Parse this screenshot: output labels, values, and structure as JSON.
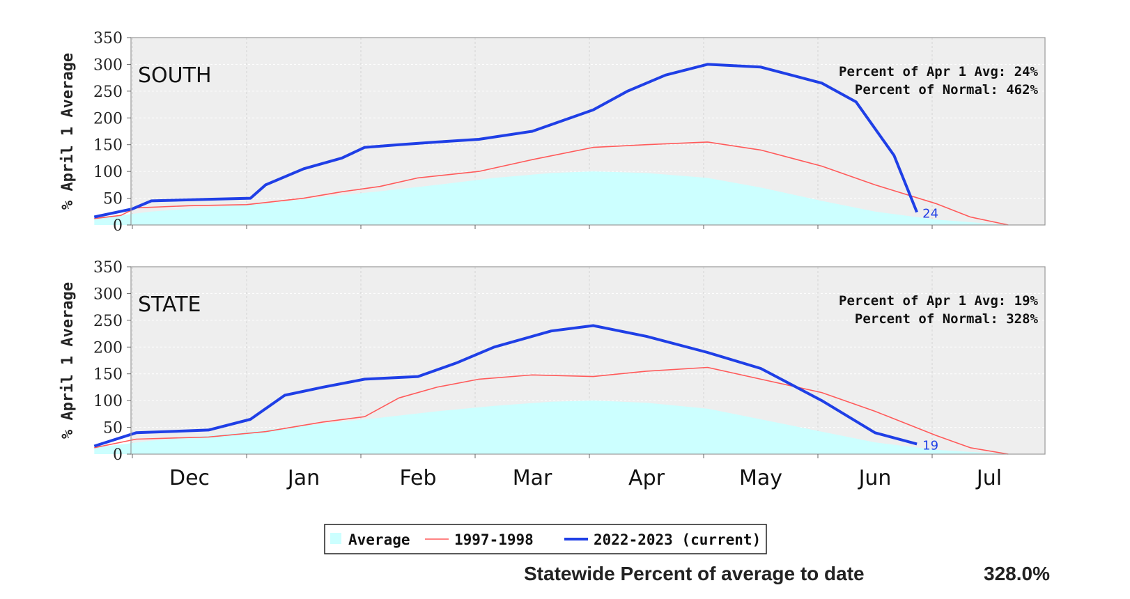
{
  "chart_data": [
    {
      "type": "area",
      "panel_label": "SOUTH",
      "ylabel": "% April 1 Average",
      "ylim": [
        0,
        350
      ],
      "yticks": [
        0,
        50,
        100,
        150,
        200,
        250,
        300,
        350
      ],
      "x_months": [
        "Dec",
        "Jan",
        "Feb",
        "Mar",
        "Apr",
        "May",
        "Jun",
        "Jul"
      ],
      "grid": true,
      "annotations": [
        "Percent of Apr 1 Avg: 24%",
        "Percent of Normal: 462%"
      ],
      "end_label": "24",
      "series": [
        {
          "name": "Average",
          "style": "area",
          "color": "#ccffff",
          "x": [
            "Nov 20",
            "Dec 5",
            "Dec 20",
            "Jan 5",
            "Jan 20",
            "Feb 5",
            "Feb 20",
            "Mar 5",
            "Mar 20",
            "Apr 1",
            "Apr 15",
            "May 1",
            "May 15",
            "Jun 1",
            "Jun 15",
            "Jul 1",
            "Jul 20"
          ],
          "y": [
            12,
            25,
            33,
            40,
            52,
            63,
            75,
            88,
            97,
            100,
            97,
            88,
            70,
            45,
            25,
            10,
            0
          ]
        },
        {
          "name": "1997-1998",
          "style": "line",
          "color": "#ff5a5a",
          "x": [
            "Nov 20",
            "Nov 27",
            "Dec 1",
            "Dec 15",
            "Dec 30",
            "Jan 15",
            "Jan 25",
            "Feb 5",
            "Feb 15",
            "Mar 1",
            "Mar 15",
            "Apr 1",
            "Apr 15",
            "May 1",
            "May 15",
            "Jun 1",
            "Jun 15",
            "Jul 1",
            "Jul 10",
            "Jul 20"
          ],
          "y": [
            12,
            18,
            32,
            36,
            38,
            50,
            62,
            72,
            88,
            100,
            122,
            145,
            150,
            155,
            140,
            110,
            75,
            40,
            15,
            0
          ]
        },
        {
          "name": "2022-2023 (current)",
          "style": "line",
          "color": "#1f3fe6",
          "x": [
            "Nov 20",
            "Nov 30",
            "Dec 5",
            "Dec 20",
            "Jan 1",
            "Jan 5",
            "Jan 15",
            "Jan 25",
            "Feb 1",
            "Feb 10",
            "Feb 20",
            "Mar 1",
            "Mar 15",
            "Apr 1",
            "Apr 10",
            "Apr 20",
            "May 1",
            "May 15",
            "Jun 1",
            "Jun 10",
            "Jun 20",
            "Jun 26"
          ],
          "y": [
            15,
            30,
            45,
            48,
            50,
            75,
            105,
            125,
            145,
            150,
            155,
            160,
            175,
            215,
            250,
            280,
            300,
            295,
            265,
            230,
            130,
            24
          ]
        }
      ]
    },
    {
      "type": "area",
      "panel_label": "STATE",
      "ylabel": "% April 1 Average",
      "ylim": [
        0,
        350
      ],
      "yticks": [
        0,
        50,
        100,
        150,
        200,
        250,
        300,
        350
      ],
      "x_months": [
        "Dec",
        "Jan",
        "Feb",
        "Mar",
        "Apr",
        "May",
        "Jun",
        "Jul"
      ],
      "grid": true,
      "annotations": [
        "Percent of Apr 1 Avg: 19%",
        "Percent of Normal: 328%"
      ],
      "end_label": "19",
      "series": [
        {
          "name": "Average",
          "style": "area",
          "color": "#ccffff",
          "x": [
            "Nov 20",
            "Dec 5",
            "Dec 20",
            "Jan 5",
            "Jan 20",
            "Feb 5",
            "Feb 20",
            "Mar 5",
            "Mar 20",
            "Apr 1",
            "Apr 15",
            "May 1",
            "May 15",
            "Jun 1",
            "Jun 15",
            "Jul 1",
            "Jul 20"
          ],
          "y": [
            12,
            25,
            35,
            45,
            57,
            68,
            80,
            90,
            98,
            100,
            96,
            85,
            65,
            42,
            22,
            8,
            0
          ]
        },
        {
          "name": "1997-1998",
          "style": "line",
          "color": "#ff5a5a",
          "x": [
            "Nov 20",
            "Dec 1",
            "Dec 20",
            "Jan 5",
            "Jan 20",
            "Feb 1",
            "Feb 10",
            "Feb 20",
            "Mar 1",
            "Mar 15",
            "Apr 1",
            "Apr 15",
            "May 1",
            "May 15",
            "Jun 1",
            "Jun 15",
            "Jul 1",
            "Jul 10",
            "Jul 20"
          ],
          "y": [
            12,
            28,
            32,
            42,
            60,
            70,
            105,
            125,
            140,
            148,
            145,
            155,
            162,
            140,
            115,
            80,
            35,
            12,
            0
          ]
        },
        {
          "name": "2022-2023 (current)",
          "style": "line",
          "color": "#1f3fe6",
          "x": [
            "Nov 20",
            "Dec 1",
            "Dec 20",
            "Jan 1",
            "Jan 10",
            "Jan 20",
            "Feb 1",
            "Feb 15",
            "Feb 25",
            "Mar 5",
            "Mar 20",
            "Apr 1",
            "Apr 15",
            "May 1",
            "May 15",
            "Jun 1",
            "Jun 15",
            "Jun 26"
          ],
          "y": [
            15,
            40,
            45,
            65,
            110,
            125,
            140,
            145,
            170,
            200,
            230,
            240,
            220,
            190,
            160,
            100,
            40,
            19
          ]
        }
      ]
    }
  ],
  "legend": [
    {
      "label": "Average",
      "color": "#ccffff",
      "kind": "area"
    },
    {
      "label": "1997-1998",
      "color": "#ff5a5a",
      "kind": "line"
    },
    {
      "label": "2022-2023 (current)",
      "color": "#1f3fe6",
      "kind": "line"
    }
  ],
  "footer": {
    "label": "Statewide Percent of average to date",
    "value": "328.0%"
  }
}
